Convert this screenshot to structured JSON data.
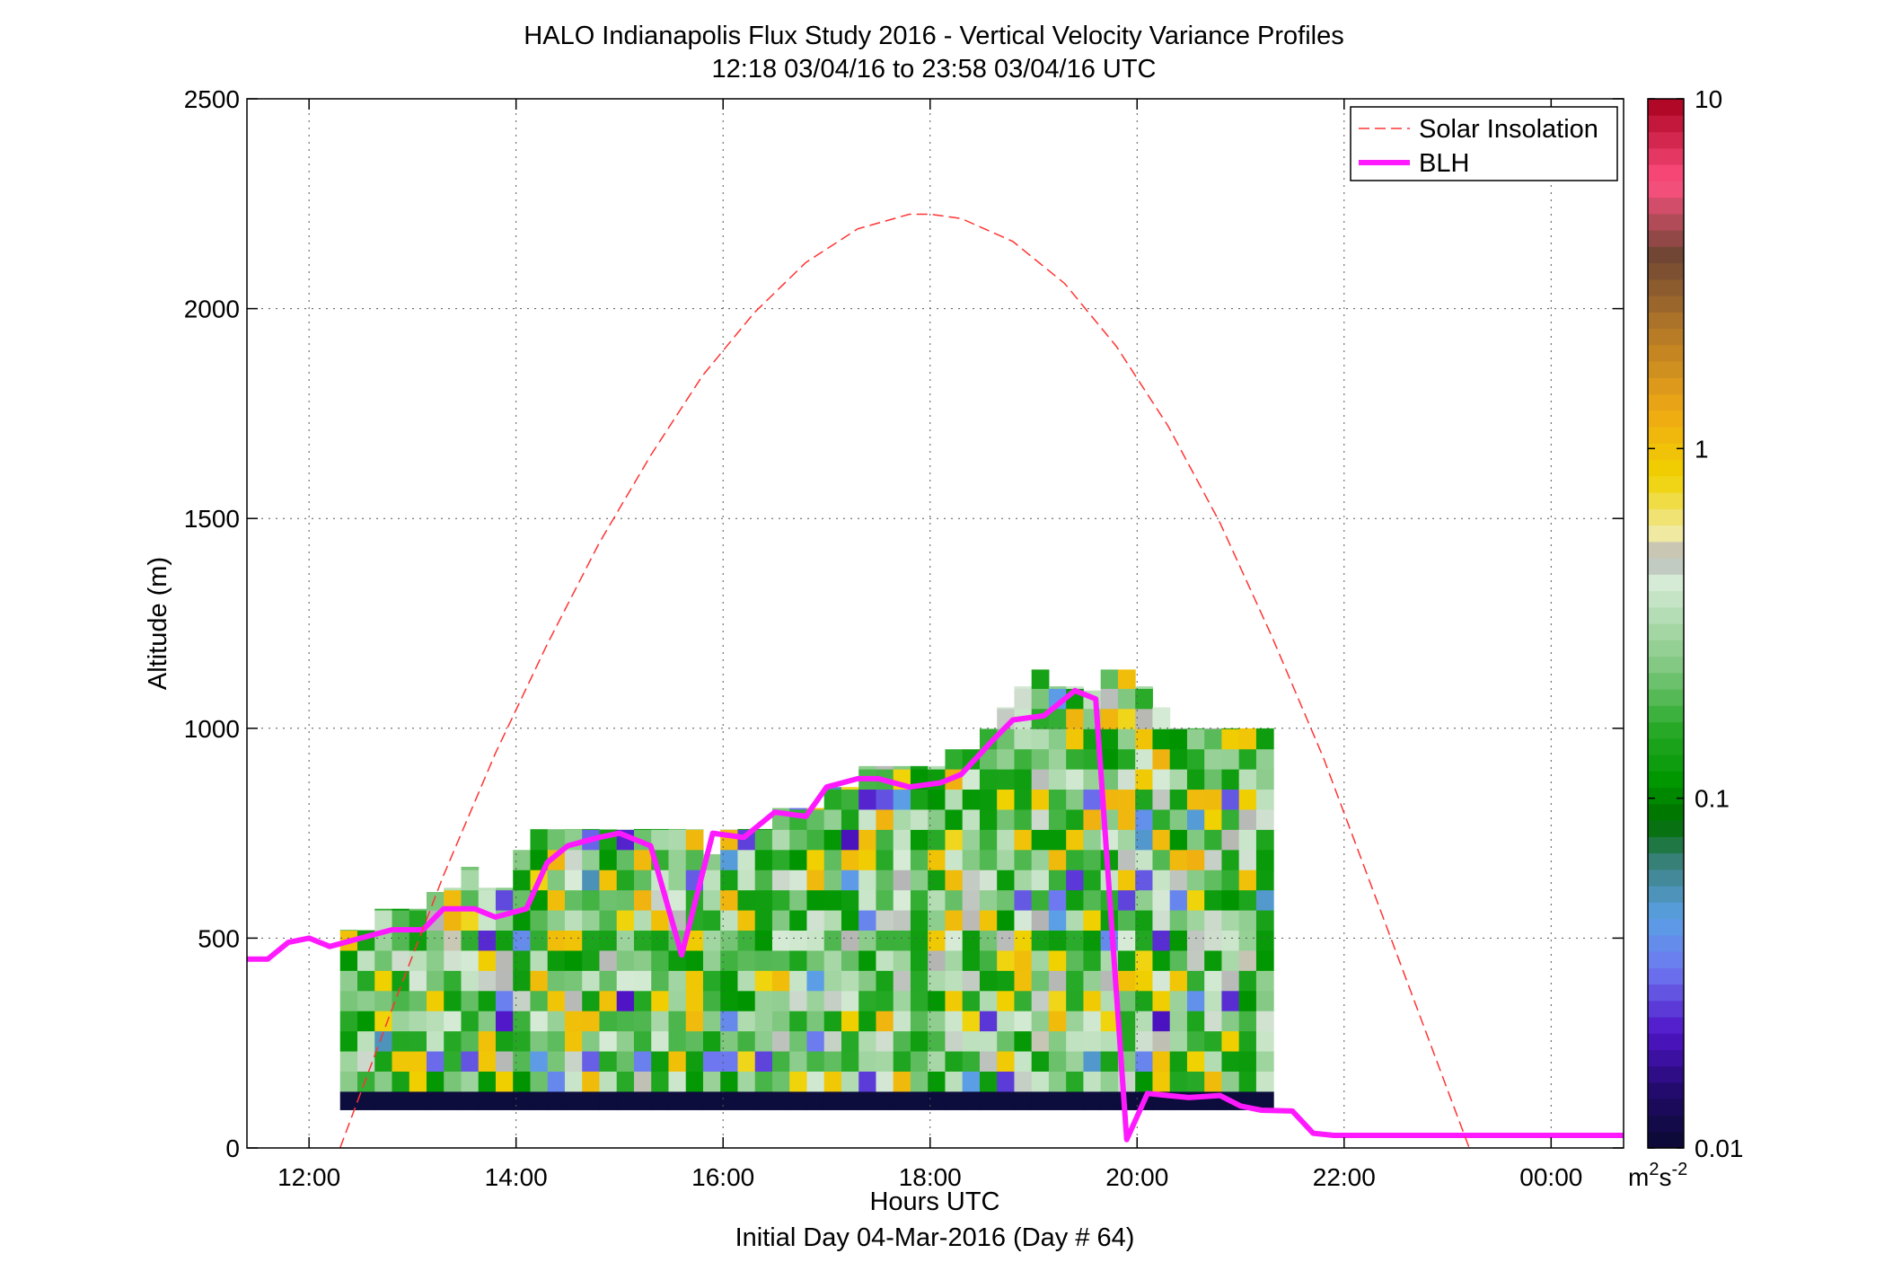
{
  "chart_data": {
    "type": "heatmap",
    "title": "HALO Indianapolis Flux Study 2016 - Vertical Velocity Variance Profiles",
    "subtitle": "12:18 03/04/16 to 23:58 03/04/16  UTC",
    "xlabel": "Hours UTC",
    "xlabel2": "Initial Day 04-Mar-2016 (Day # 64)",
    "ylabel": "Altitude (m)",
    "xlim": [
      11.4,
      24.7
    ],
    "ylim": [
      0,
      2500
    ],
    "x_ticks": [
      12,
      14,
      16,
      18,
      20,
      22,
      24
    ],
    "x_tick_labels": [
      "12:00",
      "14:00",
      "16:00",
      "18:00",
      "20:00",
      "22:00",
      "00:00"
    ],
    "y_ticks": [
      0,
      500,
      1000,
      1500,
      2000,
      2500
    ],
    "y_tick_labels": [
      "0",
      "500",
      "1000",
      "1500",
      "2000",
      "2500"
    ],
    "grid": true,
    "legend": {
      "placement": "top-right",
      "entries": [
        "Solar Insolation",
        "BLH"
      ]
    },
    "colorbar": {
      "scale": "log",
      "range": [
        0.01,
        10
      ],
      "ticks": [
        0.01,
        0.1,
        1,
        10
      ],
      "tick_labels": [
        "0.01",
        "0.1",
        "1",
        "10"
      ],
      "unit_base": "m",
      "unit_sup1": "2",
      "unit_mid": "s",
      "unit_sup2": "-2"
    },
    "colors": {
      "blh": "#ff19ff",
      "solar": "#ff3333",
      "lowest_gate": "#0d0d3d"
    },
    "heatmap": {
      "time_step_hours": 0.167,
      "altitude_step_m": 48,
      "lowest_gate_m": [
        90,
        135
      ],
      "lowest_gate_value": 0.01,
      "tops_m": [
        520,
        520,
        570,
        570,
        570,
        610,
        620,
        670,
        620,
        620,
        710,
        760,
        760,
        760,
        760,
        760,
        760,
        760,
        760,
        760,
        760,
        700,
        760,
        760,
        760,
        810,
        810,
        810,
        860,
        860,
        910,
        910,
        910,
        910,
        910,
        950,
        950,
        1000,
        1050,
        1100,
        1140,
        1100,
        1100,
        1090,
        1140,
        1140,
        1100,
        1050,
        1000,
        1000,
        1000,
        1000,
        1000,
        1000
      ]
    },
    "series": [
      {
        "name": "BLH",
        "x": [
          11.4,
          11.6,
          11.8,
          12.0,
          12.2,
          12.5,
          12.8,
          13.1,
          13.3,
          13.6,
          13.8,
          14.1,
          14.3,
          14.5,
          14.8,
          15.0,
          15.3,
          15.6,
          15.9,
          16.2,
          16.5,
          16.8,
          17.0,
          17.3,
          17.5,
          17.8,
          18.1,
          18.3,
          18.6,
          18.8,
          19.1,
          19.4,
          19.6,
          19.9,
          20.1,
          20.3,
          20.5,
          20.8,
          21.0,
          21.2,
          21.5,
          21.7,
          21.9,
          22.1,
          22.4,
          22.8,
          23.1,
          23.3,
          23.5,
          23.8,
          24.0,
          24.3,
          24.6,
          24.7
        ],
        "y": [
          450,
          450,
          490,
          500,
          480,
          500,
          520,
          520,
          570,
          570,
          550,
          570,
          680,
          720,
          740,
          750,
          720,
          460,
          750,
          740,
          800,
          790,
          860,
          880,
          880,
          860,
          870,
          890,
          970,
          1020,
          1030,
          1090,
          1070,
          20,
          130,
          125,
          120,
          125,
          100,
          90,
          88,
          35,
          30,
          30,
          30,
          30,
          30,
          30,
          30,
          30,
          30,
          30,
          30,
          30
        ]
      },
      {
        "name": "Solar Insolation",
        "x": [
          12.3,
          12.8,
          13.3,
          13.8,
          14.3,
          14.8,
          15.3,
          15.8,
          16.3,
          16.8,
          17.3,
          17.8,
          18.0,
          18.3,
          18.8,
          19.3,
          19.8,
          20.3,
          20.8,
          21.3,
          21.8,
          22.3,
          22.8,
          23.3,
          23.7
        ],
        "y": [
          0,
          330,
          650,
          940,
          1200,
          1440,
          1650,
          1840,
          1990,
          2110,
          2190,
          2225,
          2225,
          2215,
          2160,
          2060,
          1910,
          1720,
          1490,
          1220,
          930,
          600,
          270,
          -60,
          -330
        ]
      }
    ]
  }
}
